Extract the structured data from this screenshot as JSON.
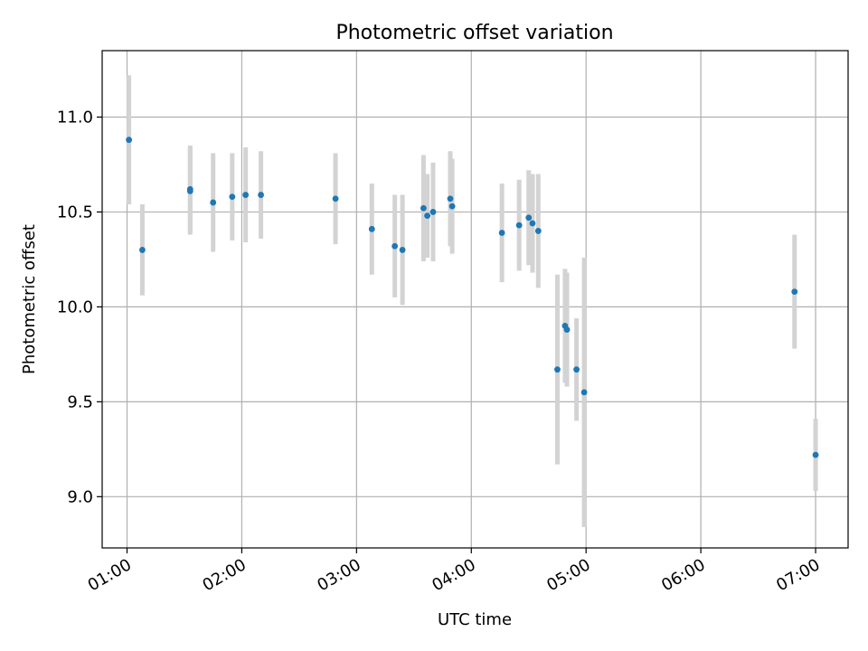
{
  "chart_data": {
    "type": "scatter",
    "title": "Photometric offset variation",
    "xlabel": "UTC time",
    "ylabel": "Photometric offset",
    "x_unit": "UTC time of day (HH:MM)",
    "xlim": [
      "00:47",
      "07:17"
    ],
    "ylim": [
      8.73,
      11.35
    ],
    "grid": true,
    "x_ticks": [
      "01:00",
      "02:00",
      "03:00",
      "04:00",
      "05:00",
      "06:00",
      "07:00"
    ],
    "y_ticks": [
      "9.0",
      "9.5",
      "10.0",
      "10.5",
      "11.0"
    ],
    "colors": {
      "marker": "#1f77b4",
      "errorbar": "#d3d3d3",
      "grid": "#b0b0b0"
    },
    "points": [
      {
        "x": "01:01",
        "y": 10.88,
        "yerr": 0.34
      },
      {
        "x": "01:08",
        "y": 10.3,
        "yerr": 0.24
      },
      {
        "x": "01:33",
        "y": 10.62,
        "yerr": 0.23
      },
      {
        "x": "01:33",
        "y": 10.61,
        "yerr": 0.23
      },
      {
        "x": "01:45",
        "y": 10.55,
        "yerr": 0.26
      },
      {
        "x": "01:55",
        "y": 10.58,
        "yerr": 0.23
      },
      {
        "x": "02:02",
        "y": 10.59,
        "yerr": 0.25
      },
      {
        "x": "02:10",
        "y": 10.59,
        "yerr": 0.23
      },
      {
        "x": "02:49",
        "y": 10.57,
        "yerr": 0.24
      },
      {
        "x": "03:08",
        "y": 10.41,
        "yerr": 0.24
      },
      {
        "x": "03:20",
        "y": 10.32,
        "yerr": 0.27
      },
      {
        "x": "03:24",
        "y": 10.3,
        "yerr": 0.29
      },
      {
        "x": "03:35",
        "y": 10.52,
        "yerr": 0.28
      },
      {
        "x": "03:37",
        "y": 10.48,
        "yerr": 0.22
      },
      {
        "x": "03:40",
        "y": 10.5,
        "yerr": 0.26
      },
      {
        "x": "03:49",
        "y": 10.57,
        "yerr": 0.25
      },
      {
        "x": "03:50",
        "y": 10.53,
        "yerr": 0.25
      },
      {
        "x": "04:16",
        "y": 10.39,
        "yerr": 0.26
      },
      {
        "x": "04:25",
        "y": 10.43,
        "yerr": 0.24
      },
      {
        "x": "04:30",
        "y": 10.47,
        "yerr": 0.25
      },
      {
        "x": "04:32",
        "y": 10.44,
        "yerr": 0.26
      },
      {
        "x": "04:35",
        "y": 10.4,
        "yerr": 0.3
      },
      {
        "x": "04:45",
        "y": 9.67,
        "yerr": 0.5
      },
      {
        "x": "04:49",
        "y": 9.9,
        "yerr": 0.3
      },
      {
        "x": "04:50",
        "y": 9.88,
        "yerr": 0.3
      },
      {
        "x": "04:55",
        "y": 9.67,
        "yerr": 0.27
      },
      {
        "x": "04:59",
        "y": 9.55,
        "yerr": 0.71
      },
      {
        "x": "06:49",
        "y": 10.08,
        "yerr": 0.3
      },
      {
        "x": "07:00",
        "y": 9.22,
        "yerr": 0.19
      }
    ]
  }
}
